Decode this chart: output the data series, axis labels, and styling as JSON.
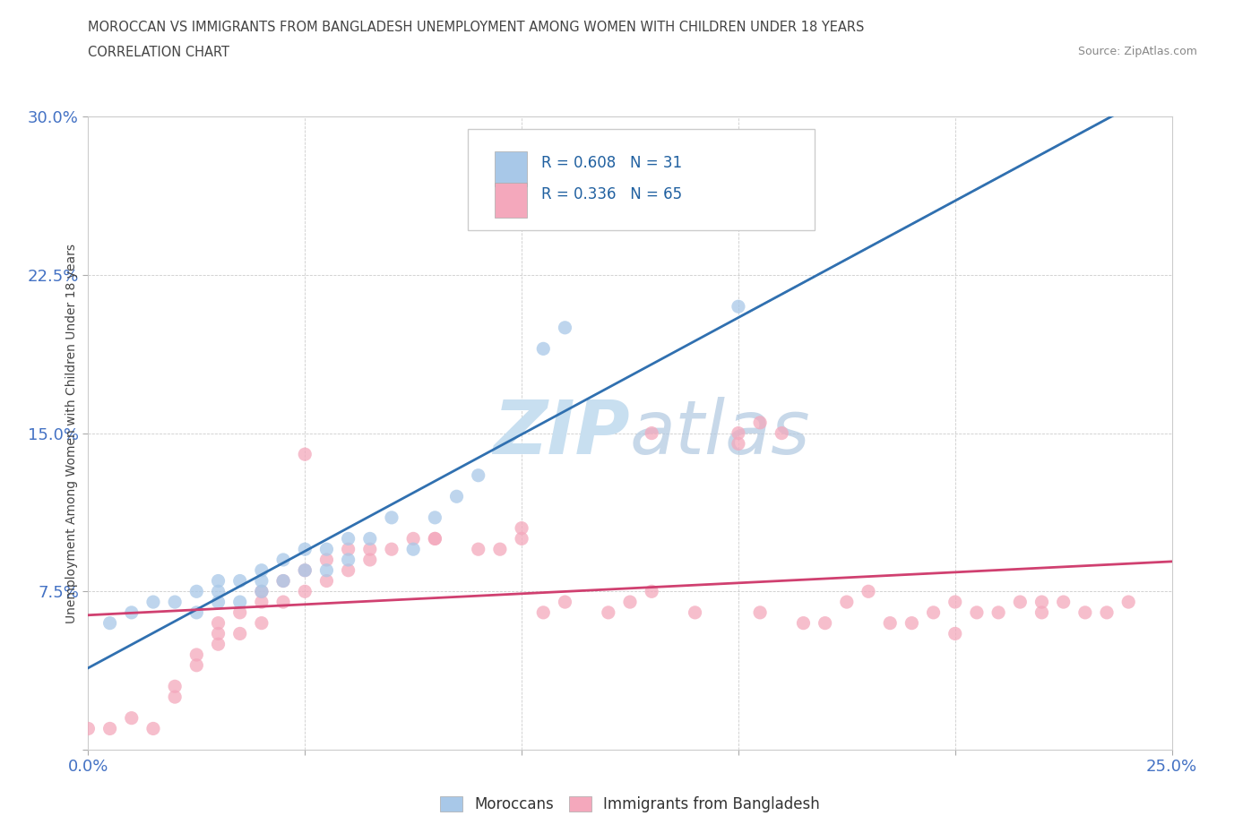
{
  "title_line1": "MOROCCAN VS IMMIGRANTS FROM BANGLADESH UNEMPLOYMENT AMONG WOMEN WITH CHILDREN UNDER 18 YEARS",
  "title_line2": "CORRELATION CHART",
  "source": "Source: ZipAtlas.com",
  "ylabel": "Unemployment Among Women with Children Under 18 years",
  "xlim": [
    0.0,
    0.25
  ],
  "ylim": [
    0.0,
    0.3
  ],
  "xticks": [
    0.0,
    0.05,
    0.1,
    0.15,
    0.2,
    0.25
  ],
  "yticks": [
    0.0,
    0.075,
    0.15,
    0.225,
    0.3
  ],
  "moroccans_R": 0.608,
  "moroccans_N": 31,
  "bangladesh_R": 0.336,
  "bangladesh_N": 65,
  "blue_color": "#a8c8e8",
  "pink_color": "#f4a8bc",
  "blue_line_color": "#3070b0",
  "pink_line_color": "#d04070",
  "tick_color": "#4472c4",
  "watermark_color": "#c8dff0",
  "moroccans_x": [
    0.005,
    0.01,
    0.015,
    0.02,
    0.025,
    0.025,
    0.03,
    0.03,
    0.03,
    0.035,
    0.035,
    0.04,
    0.04,
    0.04,
    0.045,
    0.045,
    0.05,
    0.05,
    0.055,
    0.055,
    0.06,
    0.06,
    0.065,
    0.07,
    0.075,
    0.08,
    0.085,
    0.09,
    0.105,
    0.11,
    0.15
  ],
  "moroccans_y": [
    0.06,
    0.065,
    0.07,
    0.07,
    0.065,
    0.075,
    0.07,
    0.075,
    0.08,
    0.07,
    0.08,
    0.075,
    0.08,
    0.085,
    0.08,
    0.09,
    0.085,
    0.095,
    0.085,
    0.095,
    0.09,
    0.1,
    0.1,
    0.11,
    0.095,
    0.11,
    0.12,
    0.13,
    0.19,
    0.2,
    0.21
  ],
  "bangladesh_x": [
    0.0,
    0.005,
    0.01,
    0.015,
    0.02,
    0.02,
    0.025,
    0.025,
    0.03,
    0.03,
    0.03,
    0.035,
    0.035,
    0.04,
    0.04,
    0.04,
    0.045,
    0.045,
    0.05,
    0.05,
    0.055,
    0.055,
    0.06,
    0.06,
    0.065,
    0.065,
    0.07,
    0.075,
    0.08,
    0.09,
    0.095,
    0.1,
    0.1,
    0.105,
    0.11,
    0.12,
    0.125,
    0.13,
    0.14,
    0.15,
    0.155,
    0.155,
    0.16,
    0.165,
    0.17,
    0.175,
    0.185,
    0.19,
    0.195,
    0.2,
    0.205,
    0.21,
    0.215,
    0.22,
    0.22,
    0.225,
    0.23,
    0.235,
    0.24,
    0.05,
    0.08,
    0.13,
    0.15,
    0.18,
    0.2
  ],
  "bangladesh_y": [
    0.01,
    0.01,
    0.015,
    0.01,
    0.025,
    0.03,
    0.04,
    0.045,
    0.05,
    0.055,
    0.06,
    0.055,
    0.065,
    0.06,
    0.07,
    0.075,
    0.07,
    0.08,
    0.075,
    0.085,
    0.08,
    0.09,
    0.085,
    0.095,
    0.09,
    0.095,
    0.095,
    0.1,
    0.1,
    0.095,
    0.095,
    0.1,
    0.105,
    0.065,
    0.07,
    0.065,
    0.07,
    0.075,
    0.065,
    0.15,
    0.155,
    0.065,
    0.15,
    0.06,
    0.06,
    0.07,
    0.06,
    0.06,
    0.065,
    0.07,
    0.065,
    0.065,
    0.07,
    0.065,
    0.07,
    0.07,
    0.065,
    0.065,
    0.07,
    0.14,
    0.1,
    0.15,
    0.145,
    0.075,
    0.055
  ]
}
